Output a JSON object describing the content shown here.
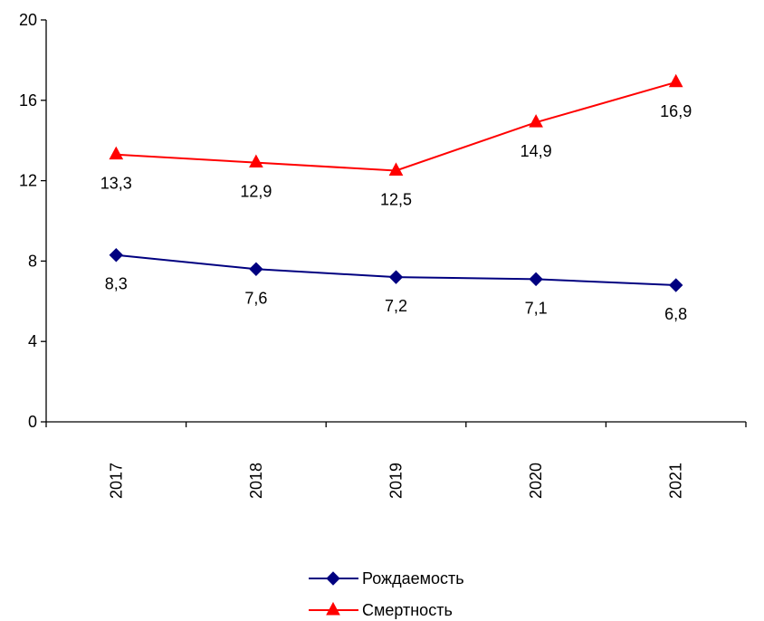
{
  "chart_data": {
    "type": "line",
    "title": "",
    "xlabel": "",
    "ylabel": "",
    "categories": [
      "2017",
      "2018",
      "2019",
      "2020",
      "2021"
    ],
    "ylim": [
      0,
      20
    ],
    "yticks": [
      0,
      4,
      8,
      12,
      16,
      20
    ],
    "grid": false,
    "legend_position": "bottom-center",
    "series": [
      {
        "name": "Рождаемость",
        "values": [
          8.3,
          7.6,
          7.2,
          7.1,
          6.8
        ],
        "labels": [
          "8,3",
          "7,6",
          "7,2",
          "7,1",
          "6,8"
        ],
        "color": "#000080",
        "marker": "diamond"
      },
      {
        "name": "Смертность",
        "values": [
          13.3,
          12.9,
          12.5,
          14.9,
          16.9
        ],
        "labels": [
          "13,3",
          "12,9",
          "12,5",
          "14,9",
          "16,9"
        ],
        "color": "#ff0000",
        "marker": "triangle"
      }
    ]
  }
}
